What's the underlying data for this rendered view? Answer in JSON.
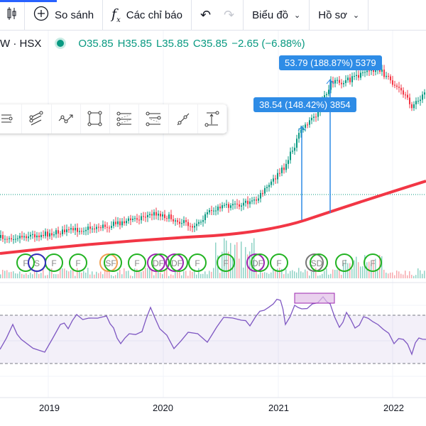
{
  "toolbar": {
    "compare_label": "So sánh",
    "indicators_label": "Các chỉ báo",
    "chart_label": "Biểu đồ",
    "profile_label": "Hồ sơ"
  },
  "legend": {
    "symbol": "W · HSX",
    "open": "O35.85",
    "high": "H35.85",
    "low": "L35.85",
    "close": "C35.85",
    "change": "−2.65 (−6.88%)"
  },
  "drawing_tools": [
    "horizontal-lines-icon",
    "parallel-channel-icon",
    "trend-arrow-icon",
    "rectangle-icon",
    "fib-retracement-icon",
    "fib-extension-icon",
    "ray-icon",
    "price-range-icon"
  ],
  "measurements": [
    {
      "label": "38.54 (148.42%) 3854"
    },
    {
      "label": "53.79 (188.87%) 5379"
    }
  ],
  "event_markers": [
    "F",
    "S",
    "F",
    "F",
    "SF",
    "F",
    "DF",
    "DF",
    "F",
    "F",
    "DF",
    "F",
    "SD",
    "F",
    "F"
  ],
  "time_axis": [
    "2019",
    "2020",
    "2021",
    "2022"
  ],
  "colors": {
    "up": "#089981",
    "down": "#f23645",
    "ma": "#f23645",
    "rsi": "#7e57c2",
    "measure": "#2e8ce6"
  }
}
